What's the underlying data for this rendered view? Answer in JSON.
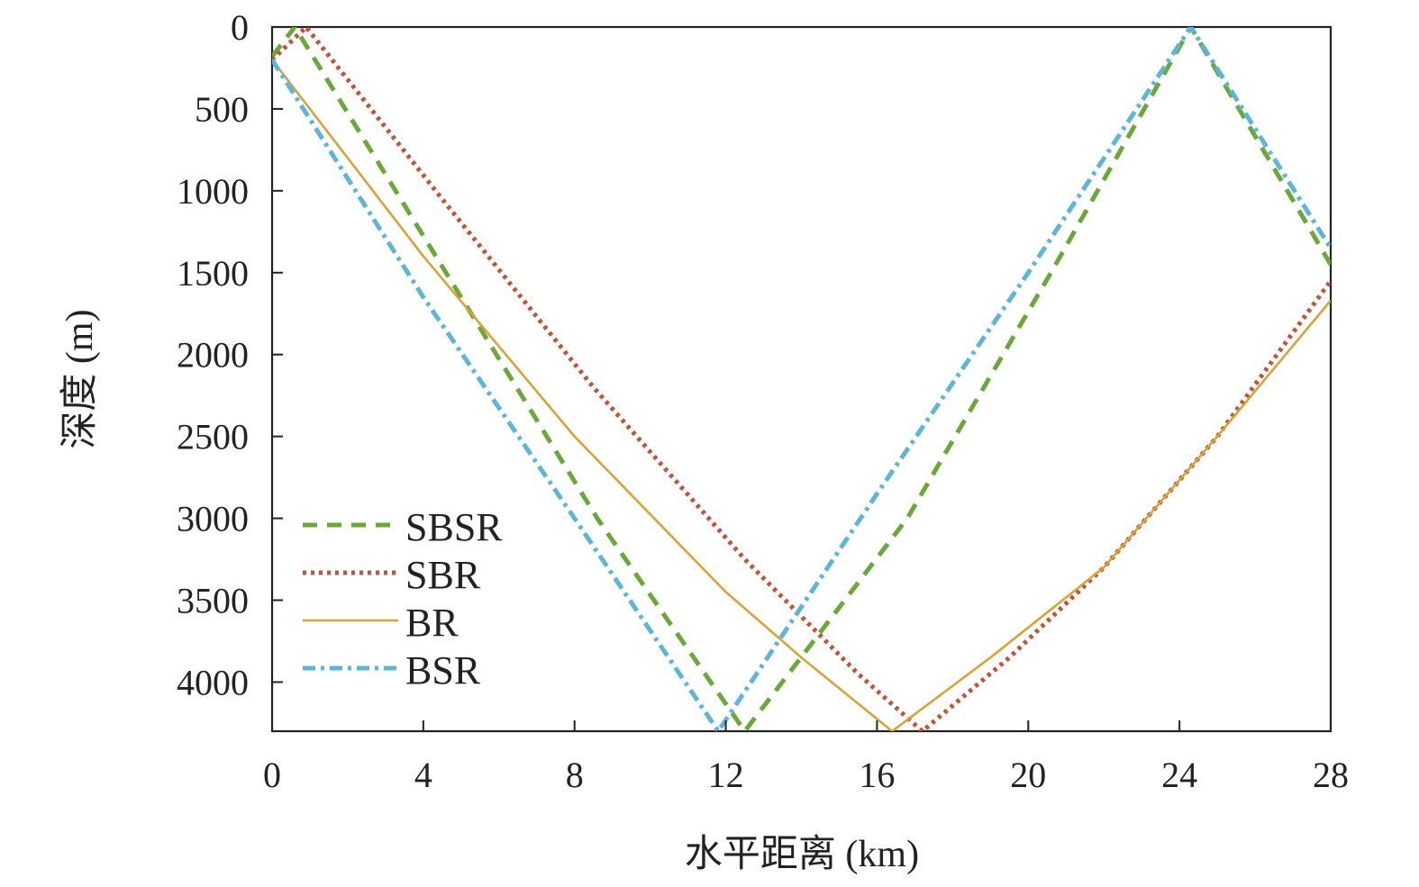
{
  "chart_data": {
    "type": "line",
    "xlabel": "水平距离 (km)",
    "ylabel": "深度 (m)",
    "xlim": [
      0,
      28
    ],
    "ylim": [
      4300,
      0
    ],
    "y_inverted": true,
    "grid": false,
    "legend_position": "lower-left",
    "x_ticks": [
      "0",
      "4",
      "8",
      "12",
      "16",
      "20",
      "24",
      "28"
    ],
    "y_ticks": [
      "0",
      "500",
      "1000",
      "1500",
      "2000",
      "2500",
      "3000",
      "3500",
      "4000"
    ],
    "series": [
      {
        "name": "SBSR",
        "color": "#6aa83a",
        "style": "dashed",
        "points": [
          [
            0,
            180
          ],
          [
            0.6,
            0
          ],
          [
            4.6,
            1500
          ],
          [
            8.6,
            3000
          ],
          [
            12.5,
            4300
          ],
          [
            12.5,
            4300
          ],
          [
            16.8,
            3000
          ],
          [
            20.6,
            1500
          ],
          [
            24.3,
            0
          ],
          [
            28,
            1450
          ]
        ]
      },
      {
        "name": "SBR",
        "color": "#c0533a",
        "style": "dotted",
        "points": [
          [
            0,
            200
          ],
          [
            0.9,
            0
          ],
          [
            4.5,
            1050
          ],
          [
            8.5,
            2200
          ],
          [
            12.5,
            3250
          ],
          [
            15.5,
            3950
          ],
          [
            17.2,
            4300
          ],
          [
            17.2,
            4300
          ],
          [
            19.5,
            3850
          ],
          [
            22.0,
            3300
          ],
          [
            25.0,
            2500
          ],
          [
            28,
            1550
          ]
        ]
      },
      {
        "name": "BR",
        "color": "#d9a33a",
        "style": "solid",
        "points": [
          [
            0,
            200
          ],
          [
            4,
            1400
          ],
          [
            8,
            2500
          ],
          [
            12,
            3450
          ],
          [
            14,
            3850
          ],
          [
            16.4,
            4300
          ],
          [
            16.4,
            4300
          ],
          [
            19,
            3850
          ],
          [
            22,
            3300
          ],
          [
            25,
            2500
          ],
          [
            28,
            1670
          ]
        ]
      },
      {
        "name": "BSR",
        "color": "#5db6d8",
        "style": "dash-dot",
        "points": [
          [
            0,
            200
          ],
          [
            4,
            1650
          ],
          [
            8,
            3000
          ],
          [
            11.8,
            4300
          ],
          [
            11.8,
            4300
          ],
          [
            16.0,
            2850
          ],
          [
            20.0,
            1500
          ],
          [
            24.3,
            0
          ],
          [
            28,
            1350
          ]
        ]
      }
    ]
  }
}
